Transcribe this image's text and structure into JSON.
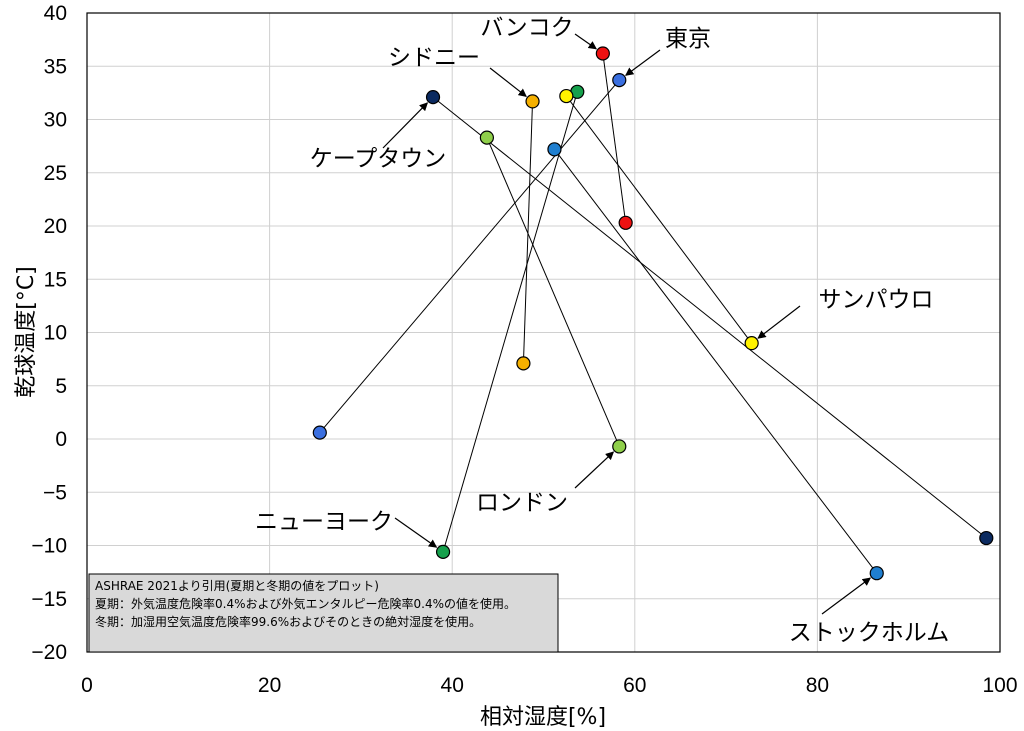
{
  "chart_data": {
    "type": "scatter",
    "xlabel": "相対湿度[%]",
    "ylabel": "乾球温度[°C]",
    "xlim": [
      0,
      100
    ],
    "ylim": [
      -20,
      40
    ],
    "x_ticks": [
      0,
      20,
      40,
      60,
      80,
      100
    ],
    "y_ticks": [
      -20,
      -15,
      -10,
      -5,
      0,
      5,
      10,
      15,
      20,
      25,
      30,
      35,
      40
    ],
    "grid": true,
    "note": [
      "ASHRAE 2021より引用(夏期と冬期の値をプロット)",
      "夏期：外気温度危険率0.4%および外気エンタルピー危険率0.4%の値を使用。",
      "冬期：加湿用空気温度危険率99.6%およびそのときの絶対湿度を使用。"
    ],
    "series": [
      {
        "name": "バンコク",
        "color": "#ee1111",
        "summer": [
          56.5,
          36.2
        ],
        "winter": [
          59.0,
          20.3
        ],
        "arrow_to": "summer"
      },
      {
        "name": "東京",
        "color": "#3a6fe0",
        "summer": [
          58.3,
          33.7
        ],
        "winter": [
          25.5,
          0.6
        ],
        "arrow_to": "summer"
      },
      {
        "name": "シドニー",
        "color": "#f5b000",
        "summer": [
          48.8,
          31.7
        ],
        "winter": [
          47.8,
          7.1
        ],
        "arrow_to": "summer"
      },
      {
        "name": "ケープタウン",
        "color": "#0b2a60",
        "summer": [
          37.9,
          32.1
        ],
        "winter": [
          98.5,
          -9.3
        ],
        "arrow_to": "summer"
      },
      {
        "name": "ニューヨーク",
        "color": "#16a04c",
        "summer": [
          53.7,
          32.6
        ],
        "winter": [
          39.0,
          -10.6
        ],
        "arrow_to": "winter"
      },
      {
        "name": "ロンドン",
        "color": "#8fcf4a",
        "summer": [
          43.8,
          28.3
        ],
        "winter": [
          58.3,
          -0.7
        ],
        "arrow_to": "winter"
      },
      {
        "name": "サンパウロ",
        "color": "#fff200",
        "summer": [
          52.5,
          32.2
        ],
        "winter": [
          72.8,
          9.0
        ],
        "arrow_to": "winter"
      },
      {
        "name": "ストックホルム",
        "color": "#1f7fd0",
        "summer": [
          51.2,
          27.2
        ],
        "winter": [
          86.5,
          -12.6
        ],
        "arrow_to": "winter"
      }
    ]
  }
}
